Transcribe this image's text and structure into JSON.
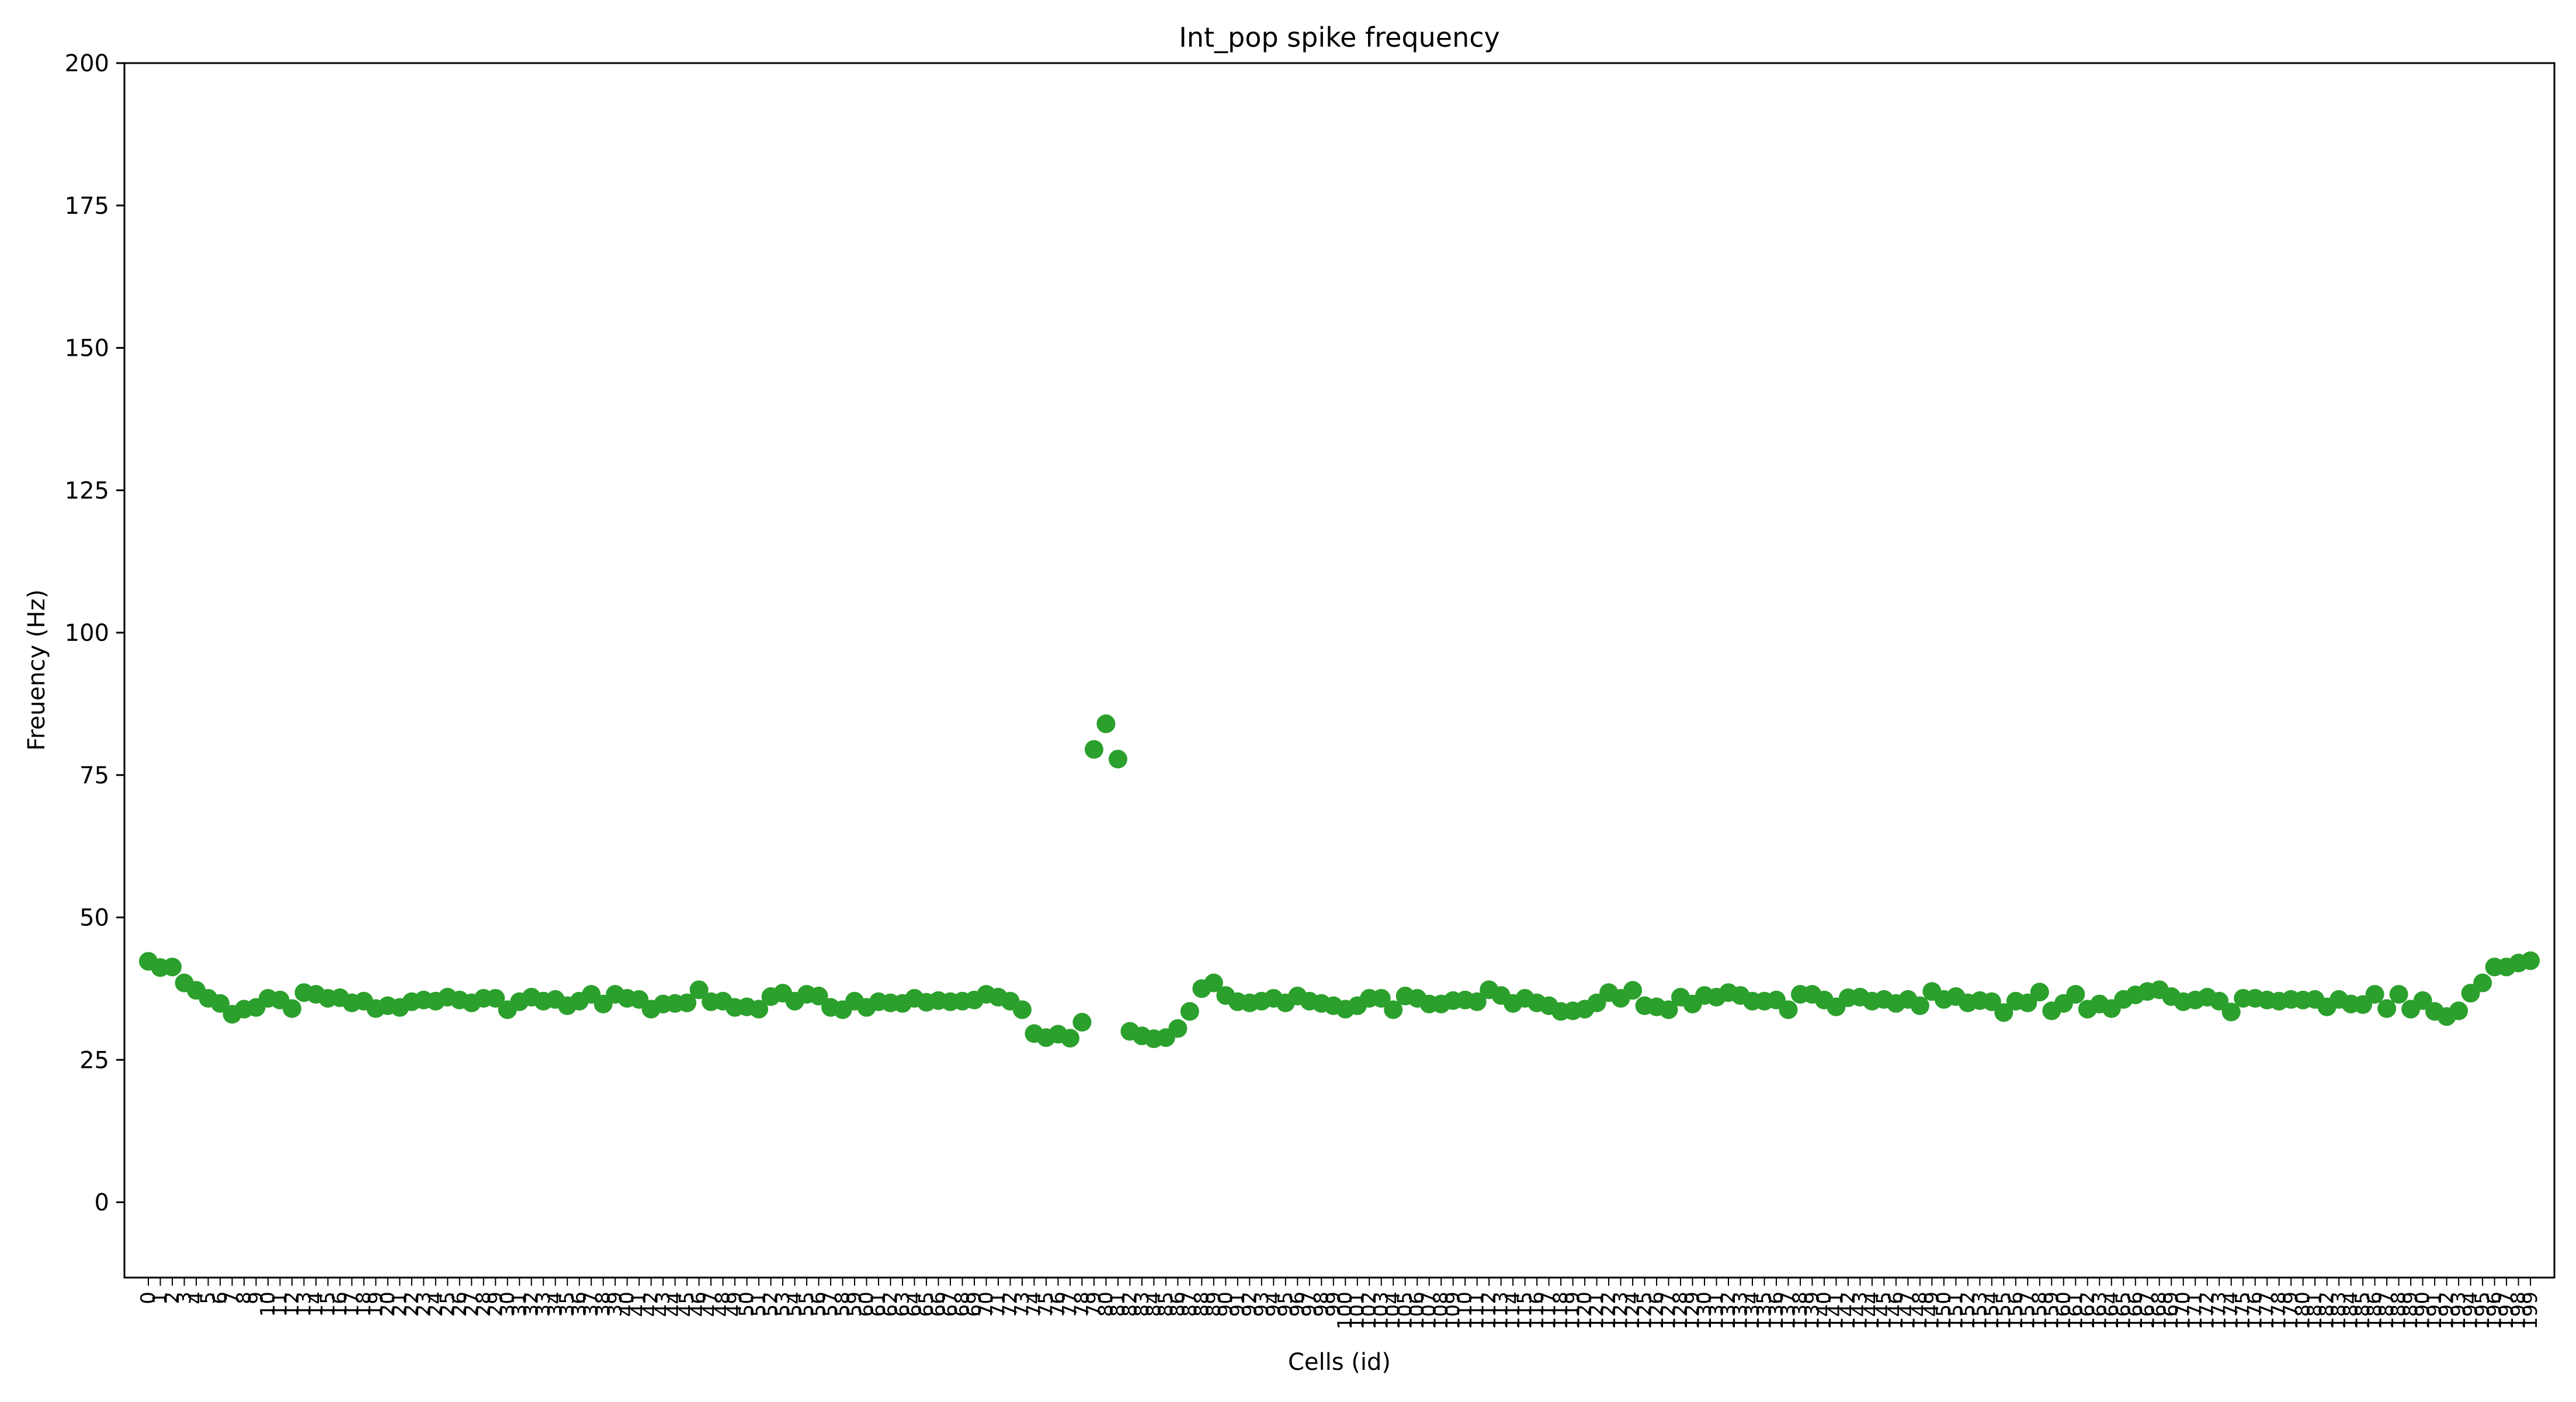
{
  "chart_data": {
    "type": "scatter",
    "title": "Int_pop spike frequency",
    "xlabel": "Cells (id)",
    "ylabel": "Freuency (Hz)",
    "ylim": [
      0,
      200
    ],
    "xlim": [
      -2,
      201
    ],
    "yticks": [
      0,
      25,
      50,
      75,
      100,
      125,
      150,
      175,
      200
    ],
    "grid": false,
    "legend": "none",
    "marker_color": "#2ca02c",
    "x": [
      0,
      1,
      2,
      3,
      4,
      5,
      6,
      7,
      8,
      9,
      10,
      11,
      12,
      13,
      14,
      15,
      16,
      17,
      18,
      19,
      20,
      21,
      22,
      23,
      24,
      25,
      26,
      27,
      28,
      29,
      30,
      31,
      32,
      33,
      34,
      35,
      36,
      37,
      38,
      39,
      40,
      41,
      42,
      43,
      44,
      45,
      46,
      47,
      48,
      49,
      50,
      51,
      52,
      53,
      54,
      55,
      56,
      57,
      58,
      59,
      60,
      61,
      62,
      63,
      64,
      65,
      66,
      67,
      68,
      69,
      70,
      71,
      72,
      73,
      74,
      75,
      76,
      77,
      78,
      79,
      80,
      81,
      82,
      83,
      84,
      85,
      86,
      87,
      88,
      89,
      90,
      91,
      92,
      93,
      94,
      95,
      96,
      97,
      98,
      99,
      100,
      101,
      102,
      103,
      104,
      105,
      106,
      107,
      108,
      109,
      110,
      111,
      112,
      113,
      114,
      115,
      116,
      117,
      118,
      119,
      120,
      121,
      122,
      123,
      124,
      125,
      126,
      127,
      128,
      129,
      130,
      131,
      132,
      133,
      134,
      135,
      136,
      137,
      138,
      139,
      140,
      141,
      142,
      143,
      144,
      145,
      146,
      147,
      148,
      149,
      150,
      151,
      152,
      153,
      154,
      155,
      156,
      157,
      158,
      159,
      160,
      161,
      162,
      163,
      164,
      165,
      166,
      167,
      168,
      169,
      170,
      171,
      172,
      173,
      174,
      175,
      176,
      177,
      178,
      179,
      180,
      181,
      182,
      183,
      184,
      185,
      186,
      187,
      188,
      189,
      190,
      191,
      192,
      193,
      194,
      195,
      196,
      197,
      198,
      199
    ],
    "y": [
      42.3,
      41.2,
      41.3,
      38.5,
      37.2,
      35.8,
      34.9,
      33.0,
      33.9,
      34.2,
      35.8,
      35.5,
      34.0,
      36.8,
      36.5,
      35.8,
      35.9,
      35.0,
      35.3,
      34.0,
      34.5,
      34.2,
      35.2,
      35.5,
      35.3,
      36.0,
      35.5,
      35.0,
      35.8,
      35.8,
      33.8,
      35.2,
      36.0,
      35.3,
      35.6,
      34.5,
      35.3,
      36.5,
      34.8,
      36.5,
      35.8,
      35.6,
      33.9,
      34.8,
      34.9,
      35.0,
      37.3,
      35.2,
      35.3,
      34.2,
      34.3,
      33.9,
      36.1,
      36.7,
      35.3,
      36.5,
      36.2,
      34.2,
      33.8,
      35.3,
      34.2,
      35.2,
      35.0,
      34.9,
      35.8,
      35.1,
      35.4,
      35.2,
      35.3,
      35.5,
      36.5,
      36.0,
      35.3,
      33.8,
      29.6,
      28.9,
      29.5,
      28.8,
      31.6,
      79.5,
      84.0,
      77.8,
      30.0,
      29.2,
      28.7,
      28.9,
      30.5,
      33.5,
      37.5,
      38.5,
      36.3,
      35.2,
      35.0,
      35.3,
      35.8,
      35.0,
      36.2,
      35.3,
      34.9,
      34.5,
      33.9,
      34.5,
      35.8,
      35.8,
      33.8,
      36.2,
      35.8,
      34.8,
      34.8,
      35.4,
      35.5,
      35.2,
      37.3,
      36.3,
      34.9,
      35.8,
      35.0,
      34.5,
      33.5,
      33.6,
      33.9,
      35.0,
      36.8,
      35.8,
      37.2,
      34.5,
      34.3,
      33.8,
      36.0,
      34.8,
      36.3,
      36.0,
      36.8,
      36.3,
      35.3,
      35.3,
      35.5,
      33.8,
      36.5,
      36.5,
      35.5,
      34.3,
      35.9,
      36.0,
      35.3,
      35.6,
      34.9,
      35.6,
      34.5,
      37.0,
      35.6,
      36.1,
      35.0,
      35.4,
      35.2,
      33.3,
      35.3,
      35.0,
      36.9,
      33.6,
      34.9,
      36.5,
      33.9,
      34.8,
      34.0,
      35.6,
      36.4,
      37.0,
      37.3,
      36.1,
      35.2,
      35.5,
      36.0,
      35.3,
      33.4,
      35.8,
      35.8,
      35.5,
      35.3,
      35.6,
      35.5,
      35.6,
      34.3,
      35.6,
      34.8,
      34.7,
      36.5,
      34.0,
      36.5,
      33.9,
      35.4,
      33.5,
      32.6,
      33.6,
      36.7,
      38.5,
      41.3,
      41.3,
      42.0,
      42.4
    ]
  }
}
